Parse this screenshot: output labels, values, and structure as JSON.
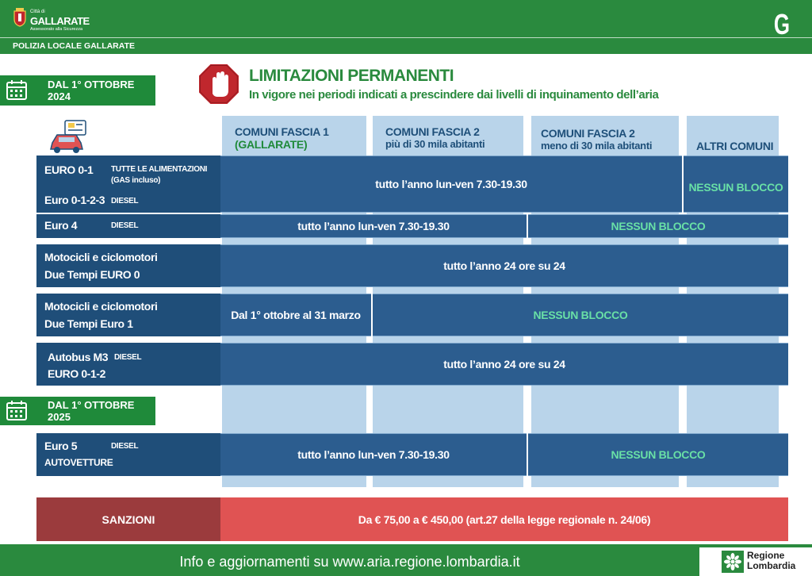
{
  "header": {
    "city_small": "Città di",
    "city": "GALLARATE",
    "assessorato": "Assessorato alla Sicurezza",
    "police": "POLIZIA LOCALE GALLARATE",
    "brand_letter": "G",
    "color": "#2a8a3e"
  },
  "date1": "DAL 1° OTTOBRE 2024",
  "date2": "DAL 1° OTTOBRE 2025",
  "title": "LIMITAZIONI PERMANENTI",
  "subtitle": "In vigore nei periodi indicati a prescindere dai livelli di inquinamento dell’aria",
  "columns": [
    {
      "line1": "COMUNI FASCIA 1",
      "line2": "(GALLARATE)"
    },
    {
      "line1": "COMUNI FASCIA 2",
      "line2": "più di 30 mila abitanti"
    },
    {
      "line1": "COMUNI FASCIA 2",
      "line2": "meno di 30 mila abitanti"
    },
    {
      "line1": "ALTRI COMUNI",
      "line2": ""
    }
  ],
  "rows": {
    "r1": {
      "a": "EURO 0-1",
      "a_sub1": "TUTTE LE ALIMENTAZIONI",
      "a_sub2": "(GAS incluso)",
      "b": "Euro 0-1-2-3",
      "b_sub": "DIESEL",
      "main": "tutto l’anno lun-ven 7.30-19.30",
      "other": "NESSUN BLOCCO"
    },
    "r2": {
      "a": "Euro 4",
      "a_sub": "DIESEL",
      "main": "tutto l’anno lun-ven 7.30-19.30",
      "other": "NESSUN BLOCCO"
    },
    "r3": {
      "a": "Motocicli e ciclomotori",
      "b": "Due Tempi EURO 0",
      "main": "tutto l’anno 24 ore su 24"
    },
    "r4": {
      "a": "Motocicli e ciclomotori",
      "b": "Due Tempi Euro 1",
      "main": "Dal 1° ottobre al 31 marzo",
      "other": "NESSUN BLOCCO"
    },
    "r5": {
      "a": "Autobus M3",
      "a_sub": "DIESEL",
      "b": "EURO 0-1-2",
      "main": "tutto l’anno 24 ore su 24"
    },
    "r6": {
      "a": "Euro 5",
      "a_sub": "DIESEL",
      "b": "AUTOVETTURE",
      "main": "tutto l’anno lun-ven 7.30-19.30",
      "other": "NESSUN BLOCCO"
    }
  },
  "sanctions": {
    "label": "SANZIONI",
    "text": "Da € 75,00 a € 450,00 (art.27 della legge regionale n. 24/06)"
  },
  "footer": {
    "info": "Info e aggiornamenti su www.aria.regione.lombardia.it",
    "region1": "Regione",
    "region2": "Lombardia"
  }
}
